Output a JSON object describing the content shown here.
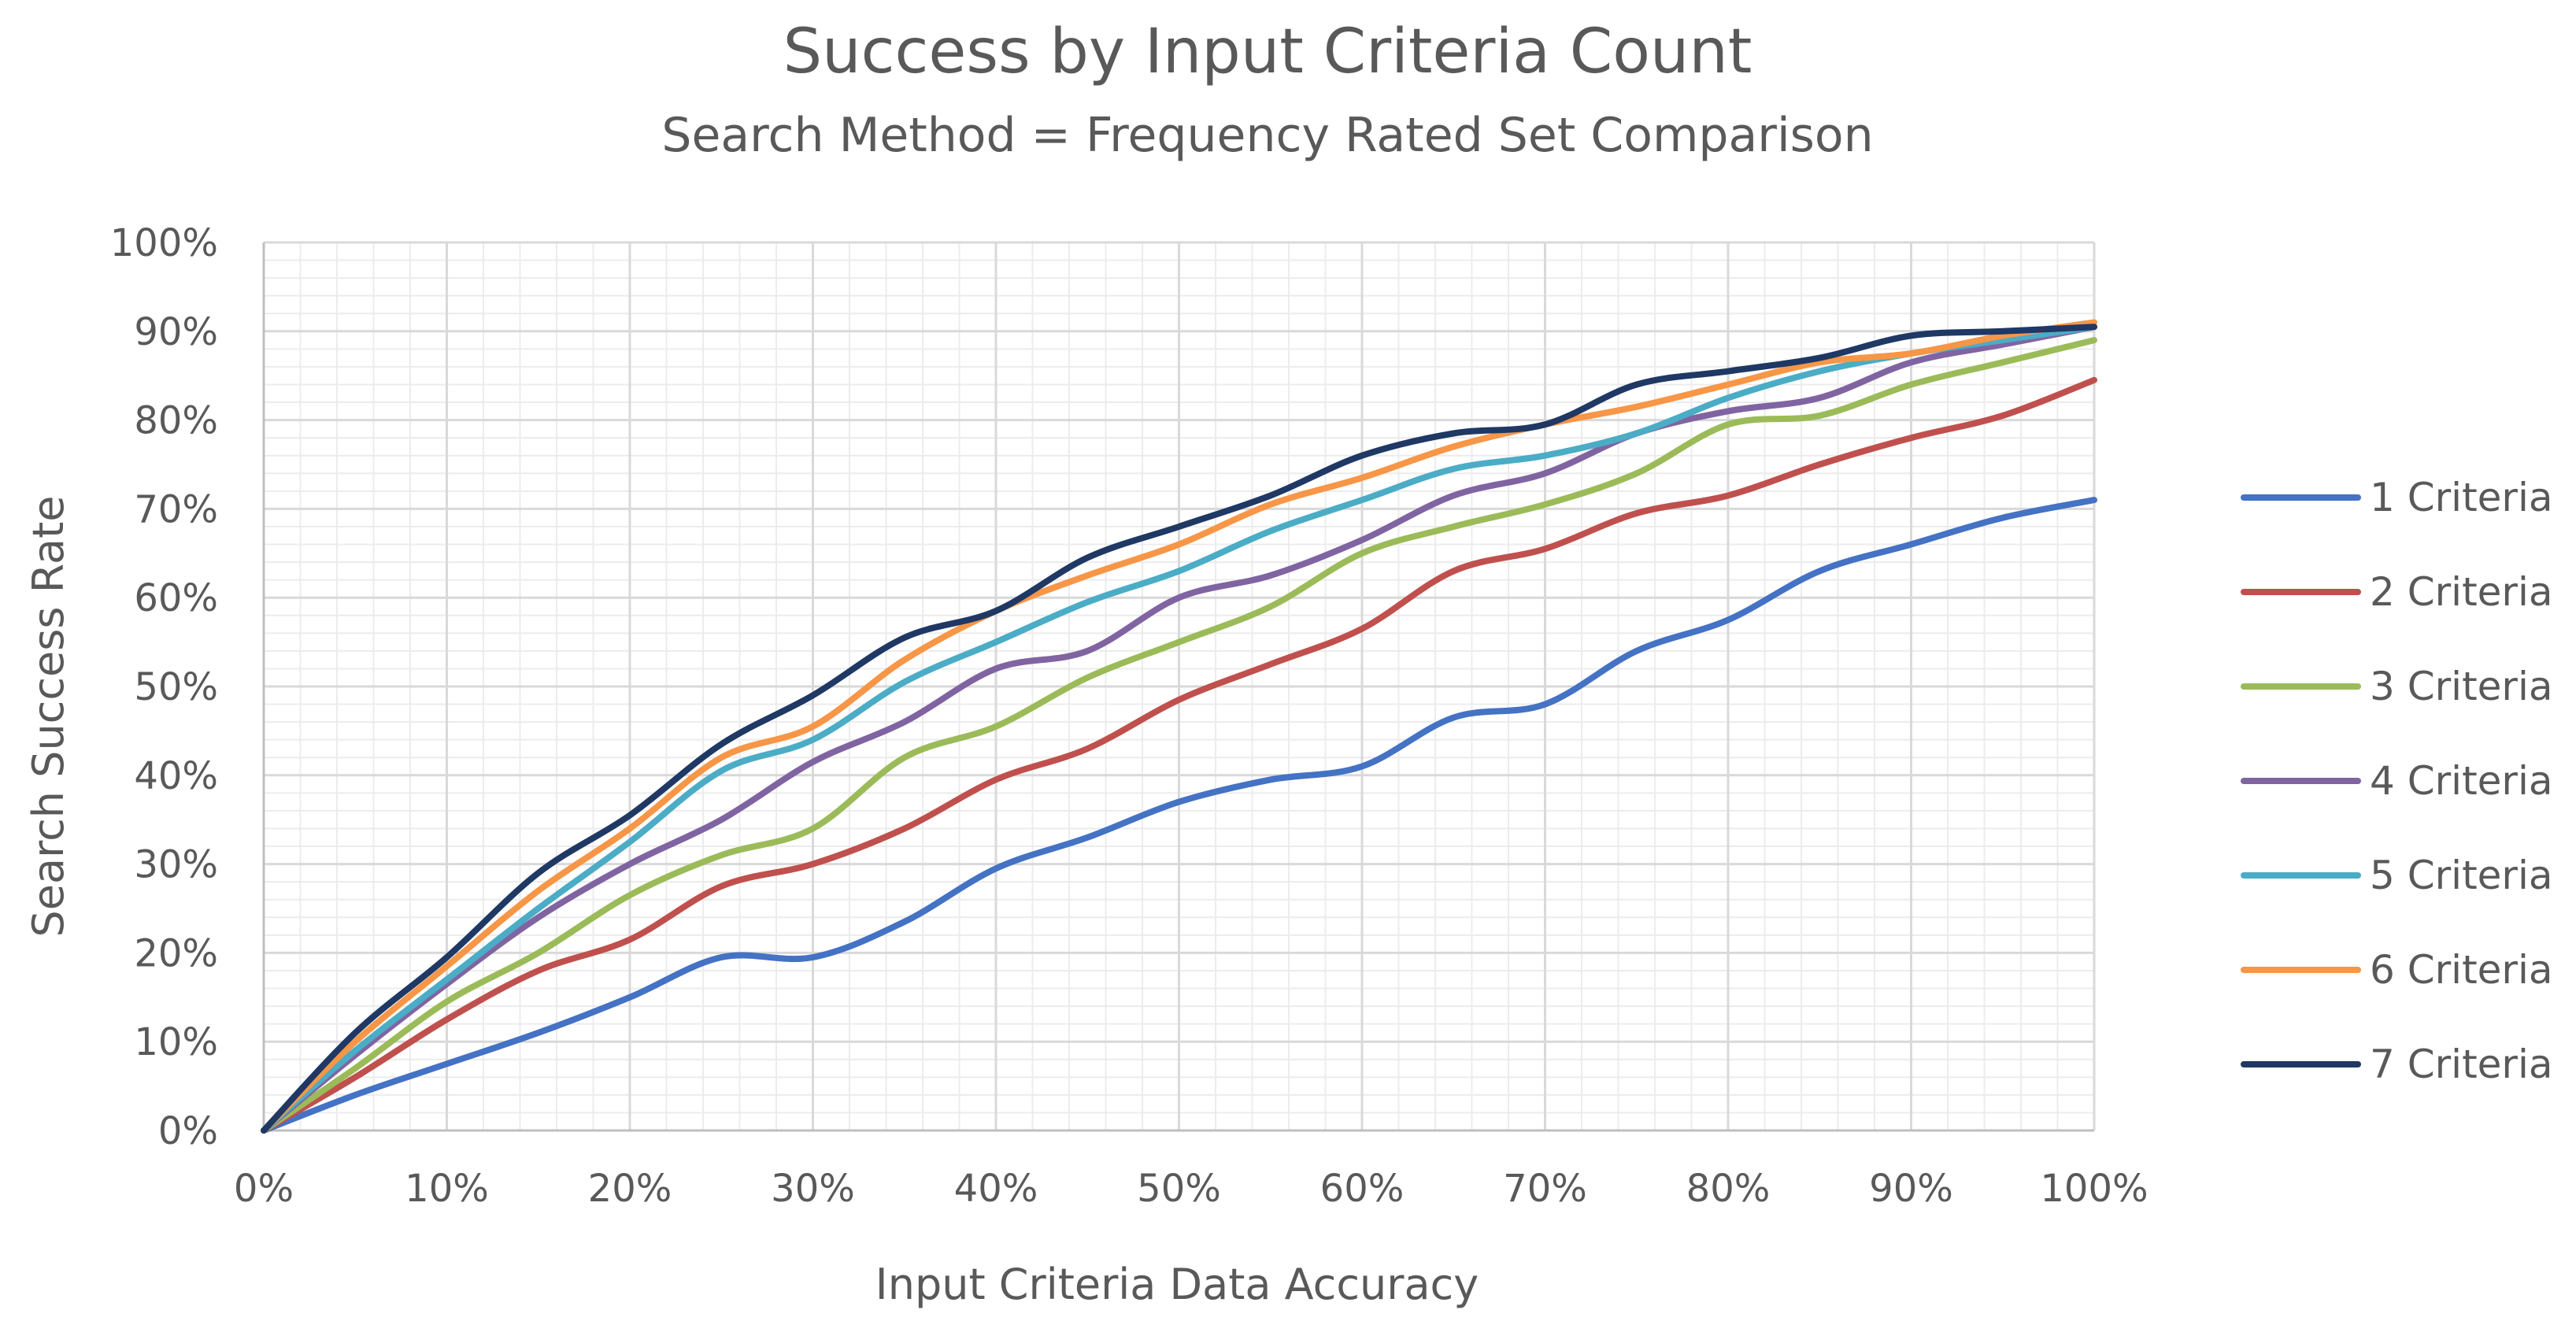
{
  "chart_data": {
    "type": "line",
    "title": "Success by Input Criteria Count",
    "subtitle": "Search Method = Frequency Rated Set Comparison",
    "xlabel": "Input Criteria Data Accuracy",
    "ylabel": "Search Success Rate",
    "xlim": [
      0,
      100
    ],
    "ylim": [
      0,
      100
    ],
    "x_ticks": [
      "0%",
      "10%",
      "20%",
      "30%",
      "40%",
      "50%",
      "60%",
      "70%",
      "80%",
      "90%",
      "100%"
    ],
    "y_ticks": [
      "0%",
      "10%",
      "20%",
      "30%",
      "40%",
      "50%",
      "60%",
      "70%",
      "80%",
      "90%",
      "100%"
    ],
    "grid": true,
    "legend_position": "right",
    "x": [
      0,
      5,
      10,
      15,
      20,
      25,
      30,
      35,
      40,
      45,
      50,
      55,
      60,
      65,
      70,
      75,
      80,
      85,
      90,
      95,
      100
    ],
    "series": [
      {
        "name": "1 Criteria",
        "color": "#4472C4",
        "values": [
          0,
          4,
          7.5,
          11,
          15,
          19.5,
          19.5,
          23.5,
          29.5,
          33,
          37,
          39.5,
          41,
          46.5,
          48,
          54,
          57.5,
          63,
          66,
          69,
          71
        ]
      },
      {
        "name": "2 Criteria",
        "color": "#C0504D",
        "values": [
          0,
          6,
          12.5,
          18,
          21.5,
          27.5,
          30,
          34,
          39.5,
          43,
          48.5,
          52.5,
          56.5,
          63,
          65.5,
          69.5,
          71.5,
          75,
          78,
          80.5,
          84.5
        ]
      },
      {
        "name": "3 Criteria",
        "color": "#9BBB59",
        "values": [
          0,
          7,
          14.5,
          20,
          26.5,
          31,
          34,
          42,
          45.5,
          51,
          55,
          59,
          65,
          68,
          70.5,
          74,
          79.5,
          80.5,
          84,
          86.5,
          89
        ]
      },
      {
        "name": "4 Criteria",
        "color": "#8064A2",
        "values": [
          0,
          8.5,
          16.5,
          24,
          30,
          35,
          41.5,
          46,
          52,
          54,
          60,
          62.5,
          66.5,
          71.5,
          74,
          78.5,
          81,
          82.5,
          86.5,
          88.5,
          90.5
        ]
      },
      {
        "name": "5 Criteria",
        "color": "#4BACC6",
        "values": [
          0,
          9,
          17,
          25,
          32.5,
          40.5,
          44,
          50.5,
          55,
          59.5,
          63,
          67.5,
          71,
          74.5,
          76,
          78.5,
          82.5,
          85.5,
          87.5,
          89,
          90.5
        ]
      },
      {
        "name": "6 Criteria",
        "color": "#F79646",
        "values": [
          0,
          10,
          18.5,
          27,
          34,
          42,
          45.5,
          53,
          58.5,
          62.5,
          66,
          70.5,
          73.5,
          77,
          79.5,
          81.5,
          84,
          86.5,
          87.5,
          89.5,
          91
        ]
      },
      {
        "name": "7 Criteria",
        "color": "#1F3864",
        "values": [
          0,
          11,
          19.5,
          29,
          35.5,
          43.5,
          49,
          55.5,
          58.5,
          64.5,
          68,
          71.5,
          76,
          78.5,
          79.5,
          84,
          85.5,
          87,
          89.5,
          90,
          90.5
        ]
      }
    ]
  }
}
